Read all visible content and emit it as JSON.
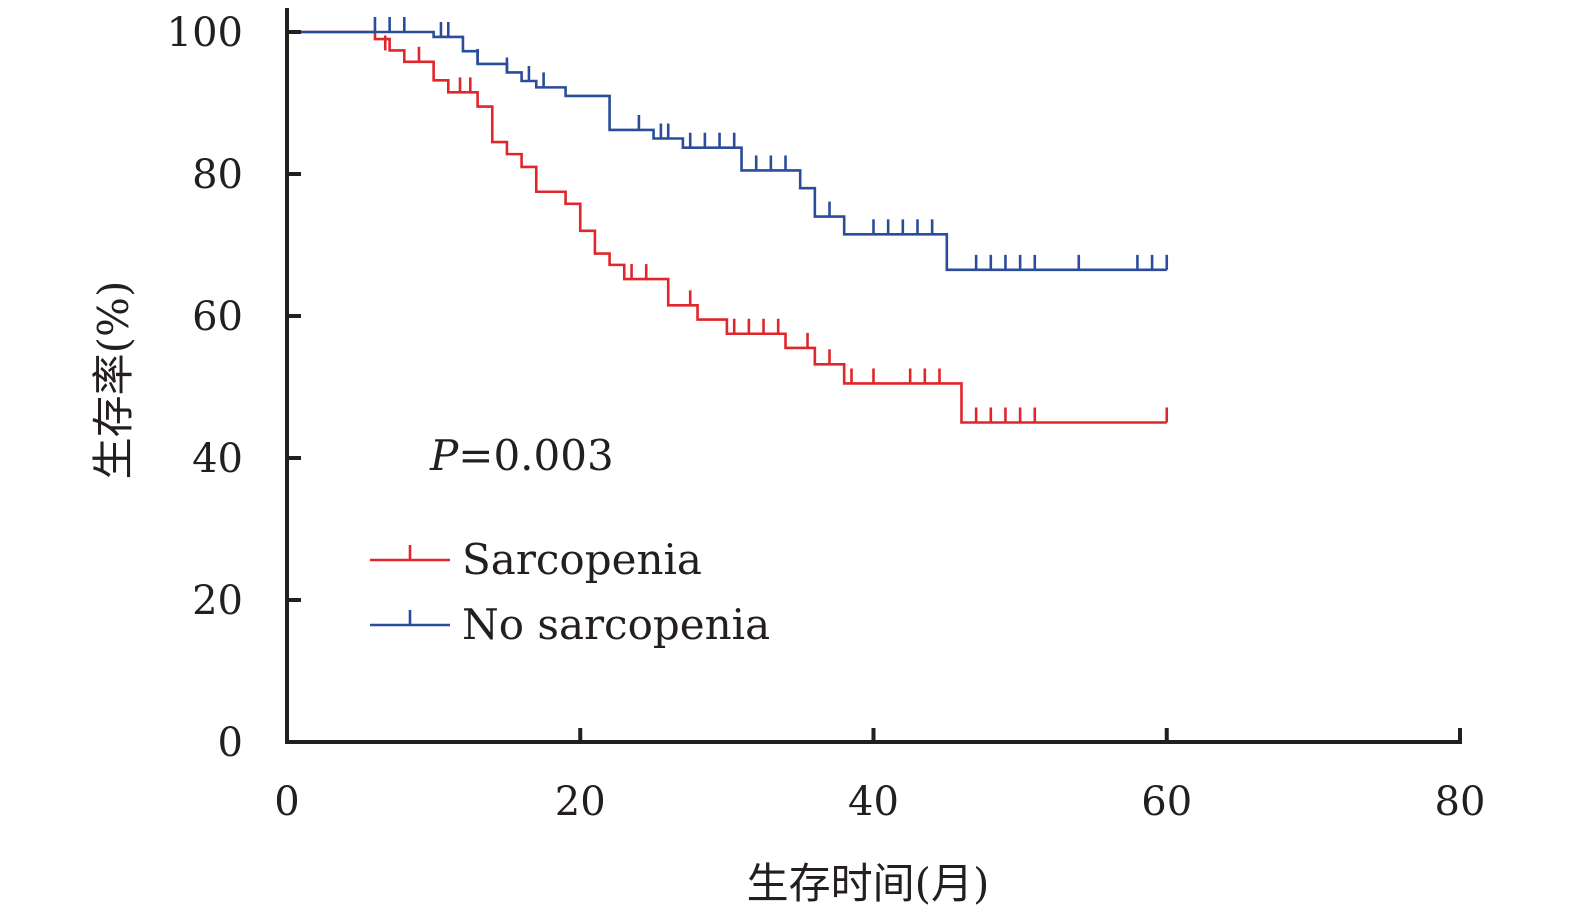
{
  "chart_data": {
    "type": "line",
    "subtype": "kaplan-meier",
    "xlabel": "生存时间(月)",
    "ylabel": "生存率(%)",
    "xlim": [
      0,
      80
    ],
    "ylim": [
      0,
      100
    ],
    "xticks": [
      "0",
      "20",
      "40",
      "60",
      "80"
    ],
    "yticks": [
      "0",
      "20",
      "40",
      "60",
      "80",
      "100"
    ],
    "grid": false,
    "legend_position": "lower-left",
    "annotation": {
      "italic": "P",
      "rest": "=0.003"
    },
    "series": [
      {
        "name": "Sarcopenia",
        "color": "#e0262b",
        "steps": [
          [
            0,
            100
          ],
          [
            6,
            99
          ],
          [
            7,
            97.4
          ],
          [
            8,
            95.8
          ],
          [
            10,
            93.2
          ],
          [
            11,
            91.5
          ],
          [
            13,
            89.5
          ],
          [
            14,
            84.5
          ],
          [
            15,
            82.8
          ],
          [
            16,
            81
          ],
          [
            17,
            77.5
          ],
          [
            19,
            75.8
          ],
          [
            20,
            72
          ],
          [
            21,
            68.8
          ],
          [
            22,
            67.2
          ],
          [
            23,
            65.2
          ],
          [
            26,
            61.5
          ],
          [
            28,
            59.5
          ],
          [
            30,
            57.5
          ],
          [
            34,
            55.5
          ],
          [
            36,
            53.2
          ],
          [
            38,
            50.5
          ],
          [
            46,
            45
          ],
          [
            60,
            45
          ]
        ],
        "censored": [
          [
            6.7,
            97.4
          ],
          [
            9,
            95.8
          ],
          [
            11.8,
            91.5
          ],
          [
            12.5,
            91.5
          ],
          [
            23.5,
            65.2
          ],
          [
            24.5,
            65.2
          ],
          [
            27.5,
            61.5
          ],
          [
            30.5,
            57.5
          ],
          [
            31.5,
            57.5
          ],
          [
            32.5,
            57.5
          ],
          [
            33.5,
            57.5
          ],
          [
            35.5,
            55.5
          ],
          [
            37,
            53.2
          ],
          [
            38.5,
            50.5
          ],
          [
            40,
            50.5
          ],
          [
            42.5,
            50.5
          ],
          [
            43.5,
            50.5
          ],
          [
            44.5,
            50.5
          ],
          [
            47,
            45
          ],
          [
            48,
            45
          ],
          [
            49,
            45
          ],
          [
            50,
            45
          ],
          [
            51,
            45
          ],
          [
            60,
            45
          ]
        ]
      },
      {
        "name": "No sarcopenia",
        "color": "#2b4c9b",
        "steps": [
          [
            0,
            100
          ],
          [
            10,
            99.3
          ],
          [
            12,
            97.3
          ],
          [
            13,
            95.5
          ],
          [
            15,
            94.3
          ],
          [
            16,
            93.1
          ],
          [
            17,
            92.2
          ],
          [
            19,
            91
          ],
          [
            22,
            86.2
          ],
          [
            25,
            85
          ],
          [
            27,
            83.7
          ],
          [
            31,
            80.5
          ],
          [
            35,
            78
          ],
          [
            36,
            74
          ],
          [
            38,
            71.5
          ],
          [
            45,
            66.5
          ],
          [
            60,
            66.5
          ]
        ],
        "censored": [
          [
            6,
            100
          ],
          [
            7,
            100
          ],
          [
            8,
            100
          ],
          [
            10.5,
            99.3
          ],
          [
            11,
            99.3
          ],
          [
            13,
            95.5
          ],
          [
            15,
            94.3
          ],
          [
            16.5,
            93.1
          ],
          [
            17.5,
            92.2
          ],
          [
            24,
            86.2
          ],
          [
            25.5,
            85
          ],
          [
            26,
            85
          ],
          [
            27.5,
            83.7
          ],
          [
            28.5,
            83.7
          ],
          [
            29.5,
            83.7
          ],
          [
            30.5,
            83.7
          ],
          [
            32,
            80.5
          ],
          [
            33,
            80.5
          ],
          [
            34,
            80.5
          ],
          [
            37,
            74
          ],
          [
            40,
            71.5
          ],
          [
            41,
            71.5
          ],
          [
            42,
            71.5
          ],
          [
            43,
            71.5
          ],
          [
            44,
            71.5
          ],
          [
            47,
            66.5
          ],
          [
            48,
            66.5
          ],
          [
            49,
            66.5
          ],
          [
            50,
            66.5
          ],
          [
            51,
            66.5
          ],
          [
            54,
            66.5
          ],
          [
            58,
            66.5
          ],
          [
            59,
            66.5
          ],
          [
            60,
            66.5
          ]
        ]
      }
    ]
  }
}
